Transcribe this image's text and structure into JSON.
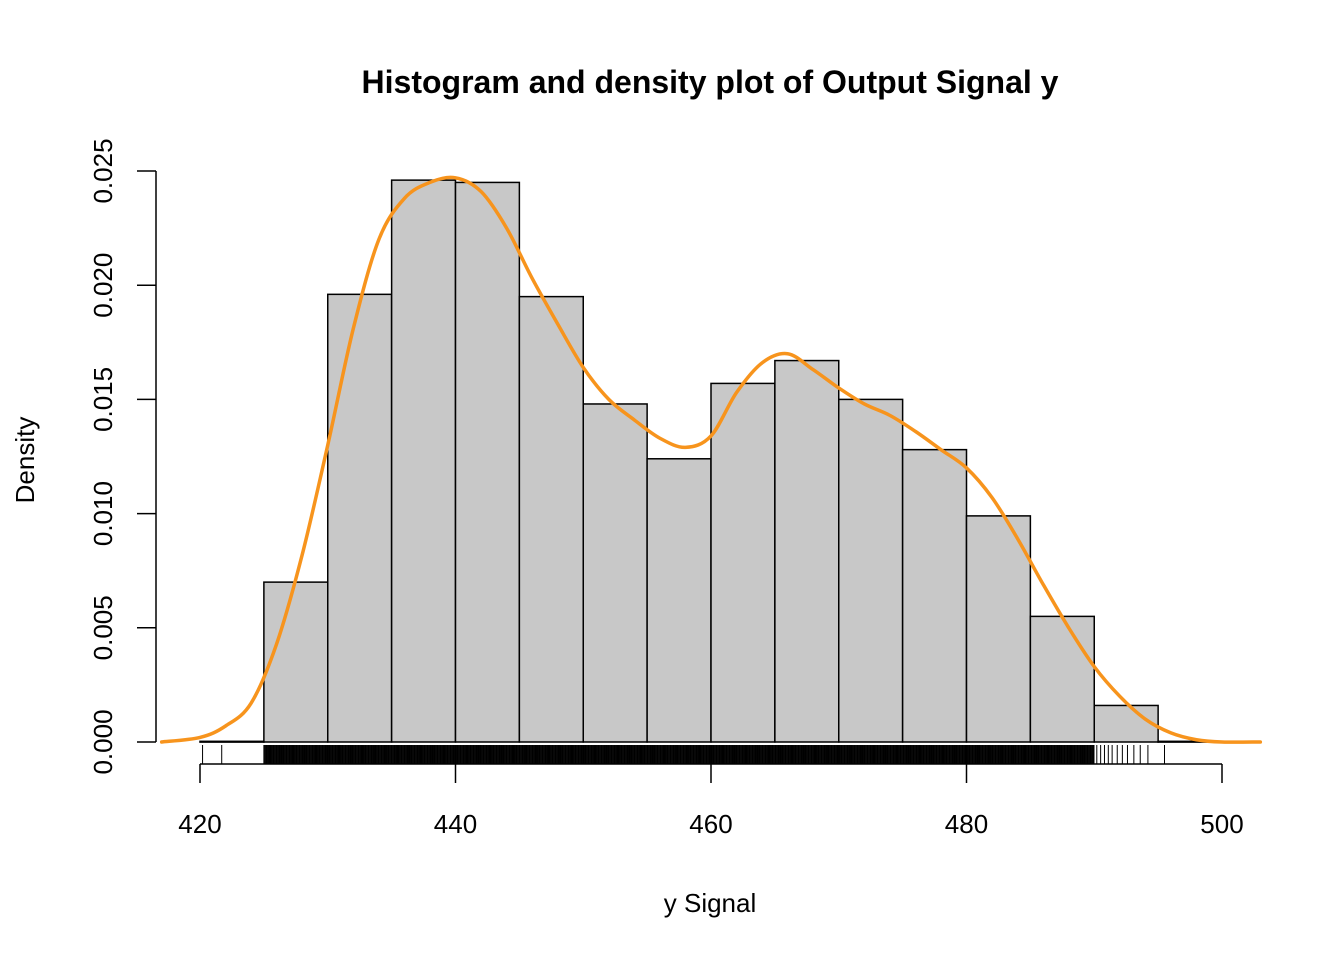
{
  "chart_data": {
    "type": "bar",
    "title": "Histogram and density plot of Output Signal y",
    "xlabel": "y Signal",
    "ylabel": "Density",
    "xlim": [
      417,
      503
    ],
    "ylim": [
      0,
      0.025
    ],
    "x_ticks": [
      "420",
      "440",
      "460",
      "480",
      "500"
    ],
    "x_tick_values": [
      420,
      440,
      460,
      480,
      500
    ],
    "y_ticks": [
      "0.000",
      "0.005",
      "0.010",
      "0.015",
      "0.020",
      "0.025"
    ],
    "y_tick_values": [
      0,
      0.005,
      0.01,
      0.015,
      0.02,
      0.025
    ],
    "grid": false,
    "bar_color": "#c8c8c8",
    "density_color": "#f7941d",
    "bins": [
      {
        "start": 420,
        "end": 425,
        "density": 3e-05
      },
      {
        "start": 425,
        "end": 430,
        "density": 0.007
      },
      {
        "start": 430,
        "end": 435,
        "density": 0.0196
      },
      {
        "start": 435,
        "end": 440,
        "density": 0.0246
      },
      {
        "start": 440,
        "end": 445,
        "density": 0.0245
      },
      {
        "start": 445,
        "end": 450,
        "density": 0.0195
      },
      {
        "start": 450,
        "end": 455,
        "density": 0.0148
      },
      {
        "start": 455,
        "end": 460,
        "density": 0.0124
      },
      {
        "start": 460,
        "end": 465,
        "density": 0.0157
      },
      {
        "start": 465,
        "end": 470,
        "density": 0.0167
      },
      {
        "start": 470,
        "end": 475,
        "density": 0.015
      },
      {
        "start": 475,
        "end": 480,
        "density": 0.0128
      },
      {
        "start": 480,
        "end": 485,
        "density": 0.0099
      },
      {
        "start": 485,
        "end": 490,
        "density": 0.0055
      },
      {
        "start": 490,
        "end": 495,
        "density": 0.0016
      },
      {
        "start": 495,
        "end": 500,
        "density": 3e-05
      }
    ],
    "density_curve": {
      "x": [
        417,
        420,
        422,
        424,
        426,
        428,
        430,
        432,
        434,
        436,
        438,
        440,
        442,
        444,
        446,
        448,
        450,
        452,
        454,
        456,
        458,
        460,
        462,
        464,
        466,
        468,
        470,
        472,
        474,
        476,
        478,
        480,
        482,
        484,
        486,
        488,
        490,
        492,
        494,
        496,
        498,
        500,
        503
      ],
      "y": [
        0.0,
        0.0002,
        0.0007,
        0.0017,
        0.0043,
        0.0082,
        0.013,
        0.0181,
        0.022,
        0.0238,
        0.0245,
        0.0247,
        0.0241,
        0.0225,
        0.0203,
        0.0183,
        0.0164,
        0.015,
        0.0141,
        0.0133,
        0.0129,
        0.0134,
        0.0153,
        0.0166,
        0.017,
        0.0163,
        0.0155,
        0.0148,
        0.0143,
        0.0136,
        0.0128,
        0.012,
        0.0107,
        0.0089,
        0.0069,
        0.005,
        0.0033,
        0.002,
        0.001,
        0.0004,
        0.0001,
        0.0,
        0.0
      ]
    },
    "rug": {
      "dense_range": [
        425,
        490
      ],
      "sparse_values": [
        420.2,
        421.7,
        490.2,
        490.5,
        490.8,
        491.1,
        491.4,
        491.8,
        492.2,
        492.6,
        493.1,
        493.6,
        494.2,
        495.5
      ]
    }
  }
}
